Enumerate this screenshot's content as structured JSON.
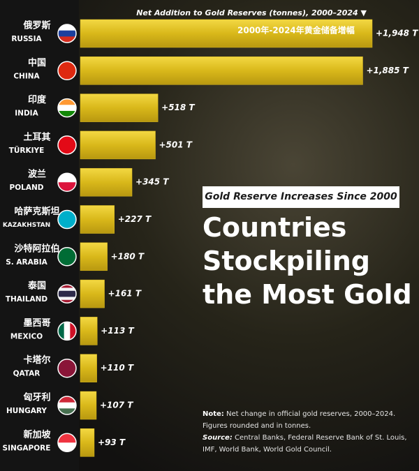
{
  "chart_data": {
    "type": "bar",
    "title": "Countries Stockpiling the Most Gold",
    "subtitle": "Gold Reserve Increases Since 2000",
    "axis_label": "Net Addition to Gold Reserves (tonnes), 2000–2024 ▼",
    "annotation": "2000年-2024年黄金储备增幅",
    "categories": [
      "RUSSIA",
      "CHINA",
      "INDIA",
      "TÜRKIYE",
      "POLAND",
      "KAZAKHSTAN",
      "S. ARABIA",
      "THAILAND",
      "MEXICO",
      "QATAR",
      "HUNGARY",
      "SINGAPORE"
    ],
    "categories_zh": [
      "俄罗斯",
      "中国",
      "印度",
      "土耳其",
      "波兰",
      "哈萨克斯坦",
      "沙特阿拉伯",
      "泰国",
      "墨西哥",
      "卡塔尔",
      "匈牙利",
      "新加坡"
    ],
    "values": [
      1948,
      1885,
      518,
      501,
      345,
      227,
      180,
      161,
      113,
      110,
      107,
      93
    ],
    "value_labels": [
      "+1,948 T",
      "+1,885 T",
      "+518 T",
      "+501 T",
      "+345 T",
      "+227 T",
      "+180 T",
      "+161 T",
      "+113 T",
      "+110 T",
      "+107 T",
      "+93 T"
    ],
    "color": "#e0bf1e",
    "note_label": "Note:",
    "note": "Net change in official gold reserves, 2000–2024. Figures rounded and in tonnes.",
    "source_label": "Source:",
    "source": "Central Banks, Federal Reserve Bank of St. Louis, IMF, World Bank, World Gold Council."
  }
}
